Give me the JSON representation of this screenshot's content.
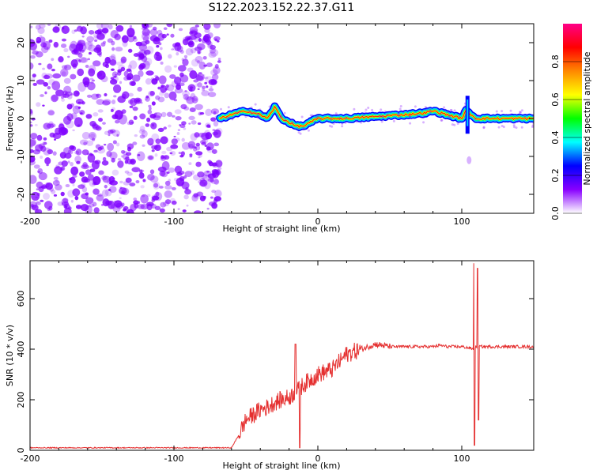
{
  "title": "S122.2023.152.22.37.G11",
  "chart_data": [
    {
      "type": "heatmap",
      "xlabel": "Height of straight line (km)",
      "ylabel": "Frequency (Hz)",
      "xlim": [
        -200,
        150
      ],
      "ylim": [
        -25,
        25
      ],
      "x_ticks": [
        "-200",
        "-100",
        "0",
        "100"
      ],
      "y_ticks": [
        "-20",
        "-10",
        "0",
        "10",
        "20"
      ],
      "noise_region_x": [
        -200,
        -68
      ],
      "signal_region_x": [
        -68,
        150
      ],
      "ridge_frequency": {
        "x": [
          -68,
          -60,
          -50,
          -40,
          -35,
          -30,
          -25,
          -20,
          -15,
          -10,
          0,
          20,
          40,
          60,
          75,
          80,
          90,
          100,
          103,
          110,
          130,
          150
        ],
        "y": [
          0,
          1,
          2,
          1,
          0,
          3,
          0,
          -1,
          -2,
          -2,
          0,
          0,
          0.5,
          1,
          1.5,
          2,
          1,
          0,
          2,
          0,
          0,
          0
        ]
      },
      "colorbar": {
        "label": "Normalized spectral amplitude",
        "range": [
          0,
          1
        ],
        "ticks": [
          "0.0",
          "0.2",
          "0.4",
          "0.6",
          "0.8"
        ],
        "colors": [
          "#ffffff",
          "#8800ff",
          "#0000ff",
          "#00ffff",
          "#00ff00",
          "#ffff00",
          "#ff8800",
          "#ff0000",
          "#ff0088"
        ]
      },
      "signal_color": "#7f00ff"
    },
    {
      "type": "line",
      "xlabel": "Height of straight line (km)",
      "ylabel": "SNR (10 * v/v)",
      "xlim": [
        -200,
        150
      ],
      "ylim": [
        0,
        750
      ],
      "x_ticks": [
        "-200",
        "-100",
        "0",
        "100"
      ],
      "y_ticks": [
        "0",
        "200",
        "400",
        "600"
      ],
      "series": [
        {
          "color": "#e53030",
          "x": [
            -200,
            -150,
            -100,
            -60,
            -55,
            -50,
            -45,
            -40,
            -35,
            -30,
            -25,
            -20,
            -15,
            -10,
            -5,
            0,
            5,
            10,
            15,
            20,
            25,
            30,
            35,
            40,
            45,
            50,
            60,
            70,
            80,
            85,
            90,
            95,
            100,
            105,
            108,
            110,
            115,
            120,
            130,
            140,
            150
          ],
          "y": [
            10,
            10,
            10,
            10,
            60,
            120,
            140,
            160,
            170,
            190,
            200,
            210,
            230,
            260,
            280,
            300,
            310,
            320,
            350,
            380,
            390,
            400,
            410,
            420,
            415,
            410,
            410,
            410,
            410,
            415,
            410,
            410,
            410,
            405,
            400,
            410,
            410,
            410,
            410,
            410,
            410
          ]
        }
      ]
    }
  ]
}
